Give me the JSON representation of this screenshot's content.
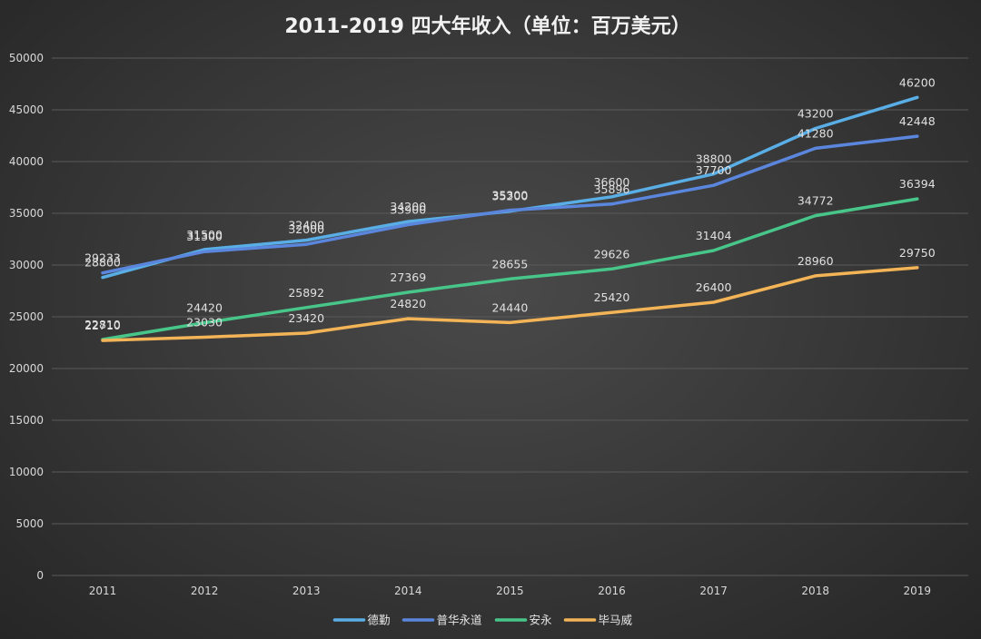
{
  "chart_data": {
    "type": "line",
    "title": "2011-2019 四大年收入（单位：百万美元）",
    "categories": [
      "2011",
      "2012",
      "2013",
      "2014",
      "2015",
      "2016",
      "2017",
      "2018",
      "2019"
    ],
    "yticks": [
      "0",
      "5000",
      "10000",
      "15000",
      "20000",
      "25000",
      "30000",
      "35000",
      "40000",
      "45000",
      "50000"
    ],
    "ylim": [
      0,
      50000
    ],
    "grid": true,
    "legend_position": "bottom",
    "series": [
      {
        "name": "德勤",
        "color": "#5aaee6",
        "values": [
          28800,
          31500,
          32400,
          34200,
          35200,
          36600,
          38800,
          43200,
          46200
        ]
      },
      {
        "name": "普华永道",
        "color": "#5b86dd",
        "values": [
          29233,
          31300,
          32000,
          33900,
          35300,
          35896,
          37700,
          41280,
          42448
        ]
      },
      {
        "name": "安永",
        "color": "#48c68a",
        "values": [
          22810,
          24420,
          25892,
          27369,
          28655,
          29626,
          31404,
          34772,
          36394
        ]
      },
      {
        "name": "毕马威",
        "color": "#f2b456",
        "values": [
          22710,
          23030,
          23420,
          24820,
          24440,
          25420,
          26400,
          28960,
          29750
        ]
      }
    ]
  }
}
